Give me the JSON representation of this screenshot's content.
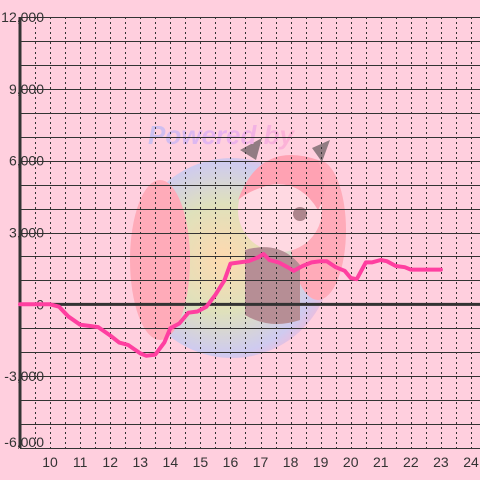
{
  "watermark": {
    "text": "Powered by",
    "colors": [
      "#a7b8ff",
      "#d7a0ff",
      "#ff9fcf"
    ]
  },
  "colors": {
    "background": "#ffcfde",
    "line": "#ff3fa0",
    "grid": "#333333",
    "axis": "#333333"
  },
  "chart_data": {
    "type": "line",
    "title": "",
    "xlabel": "",
    "ylabel": "",
    "xlim": [
      9.0,
      24.3
    ],
    "ylim": [
      -6000,
      12000
    ],
    "x_ticks": [
      10,
      11,
      12,
      13,
      14,
      15,
      16,
      17,
      18,
      19,
      20,
      21,
      22,
      23,
      24
    ],
    "y_ticks": [
      {
        "value": -6000,
        "label": "-6,000"
      },
      {
        "value": -3000,
        "label": "-3,000"
      },
      {
        "value": 0,
        "label": "0"
      },
      {
        "value": 3000,
        "label": "3,000"
      },
      {
        "value": 6000,
        "label": "6,000"
      },
      {
        "value": 9000,
        "label": "9,000"
      },
      {
        "value": 12000,
        "label": "12,000"
      }
    ],
    "grid": true,
    "series": [
      {
        "x": [
          9.0,
          9.5,
          10.0,
          10.3,
          10.6,
          11.0,
          11.3,
          11.6,
          12.0,
          12.3,
          12.6,
          13.0,
          13.2,
          13.5,
          13.8,
          14.0,
          14.3,
          14.6,
          14.9,
          15.2,
          15.5,
          15.8,
          16.0,
          16.3,
          16.6,
          16.9,
          17.1,
          17.3,
          17.6,
          17.9,
          18.1,
          18.4,
          18.7,
          19.0,
          19.2,
          19.5,
          19.8,
          20.0,
          20.2,
          20.5,
          20.7,
          21.0,
          21.2,
          21.5,
          21.8,
          22.0,
          22.3,
          22.6,
          23.0
        ],
        "y": [
          0,
          0,
          0,
          -100,
          -500,
          -850,
          -900,
          -950,
          -1300,
          -1600,
          -1700,
          -2050,
          -2150,
          -2100,
          -1600,
          -1000,
          -800,
          -350,
          -300,
          -100,
          400,
          1000,
          1700,
          1750,
          1800,
          1950,
          2100,
          1850,
          1750,
          1550,
          1400,
          1600,
          1750,
          1800,
          1800,
          1550,
          1400,
          1100,
          1050,
          1750,
          1750,
          1850,
          1800,
          1600,
          1550,
          1450,
          1450,
          1450,
          1450
        ]
      }
    ]
  }
}
